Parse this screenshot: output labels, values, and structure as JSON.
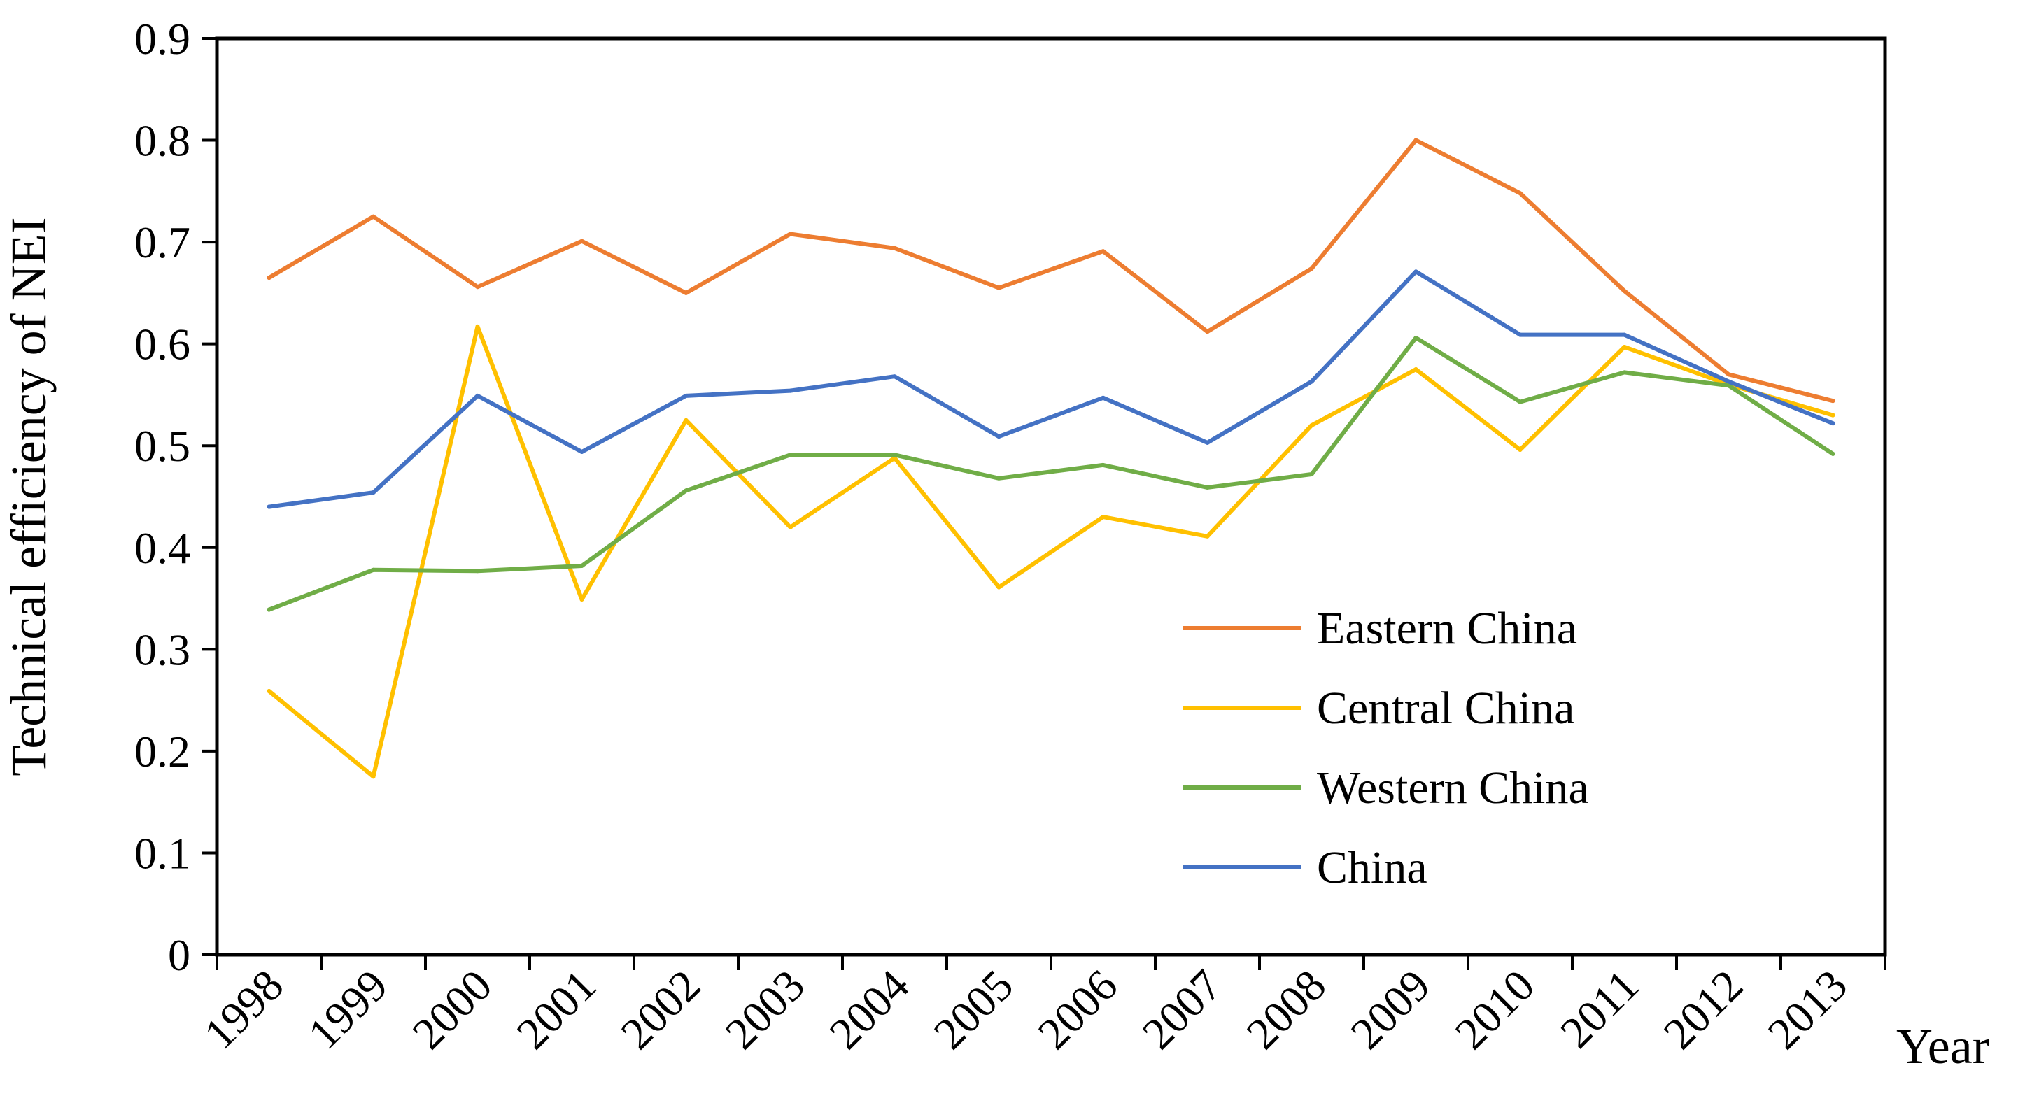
{
  "chart_data": {
    "type": "line",
    "title": "",
    "xlabel": "Year",
    "ylabel": "Technical efficiency of NEI",
    "ylim": [
      0,
      0.9
    ],
    "y_ticks": [
      "0",
      "0.1",
      "0.2",
      "0.3",
      "0.4",
      "0.5",
      "0.6",
      "0.7",
      "0.8",
      "0.9"
    ],
    "categories": [
      "1998",
      "1999",
      "2000",
      "2001",
      "2002",
      "2003",
      "2004",
      "2005",
      "2006",
      "2007",
      "2008",
      "2009",
      "2010",
      "2011",
      "2012",
      "2013"
    ],
    "legend_position": "center-right",
    "grid": false,
    "series": [
      {
        "name": "Eastern China",
        "color": "#ED7D31",
        "values": [
          0.665,
          0.725,
          0.656,
          0.701,
          0.65,
          0.708,
          0.694,
          0.655,
          0.691,
          0.612,
          0.674,
          0.8,
          0.748,
          0.652,
          0.57,
          0.544
        ]
      },
      {
        "name": "Central China",
        "color": "#FFC000",
        "values": [
          0.259,
          0.175,
          0.617,
          0.349,
          0.525,
          0.42,
          0.488,
          0.361,
          0.43,
          0.411,
          0.52,
          0.575,
          0.496,
          0.597,
          0.56,
          0.53
        ]
      },
      {
        "name": "Western China",
        "color": "#70AD47",
        "values": [
          0.339,
          0.378,
          0.377,
          0.382,
          0.456,
          0.491,
          0.491,
          0.468,
          0.481,
          0.459,
          0.472,
          0.606,
          0.543,
          0.572,
          0.559,
          0.492
        ]
      },
      {
        "name": "China",
        "color": "#4472C4",
        "values": [
          0.44,
          0.454,
          0.549,
          0.494,
          0.549,
          0.554,
          0.568,
          0.509,
          0.547,
          0.503,
          0.563,
          0.671,
          0.609,
          0.609,
          0.563,
          0.522
        ]
      }
    ]
  }
}
